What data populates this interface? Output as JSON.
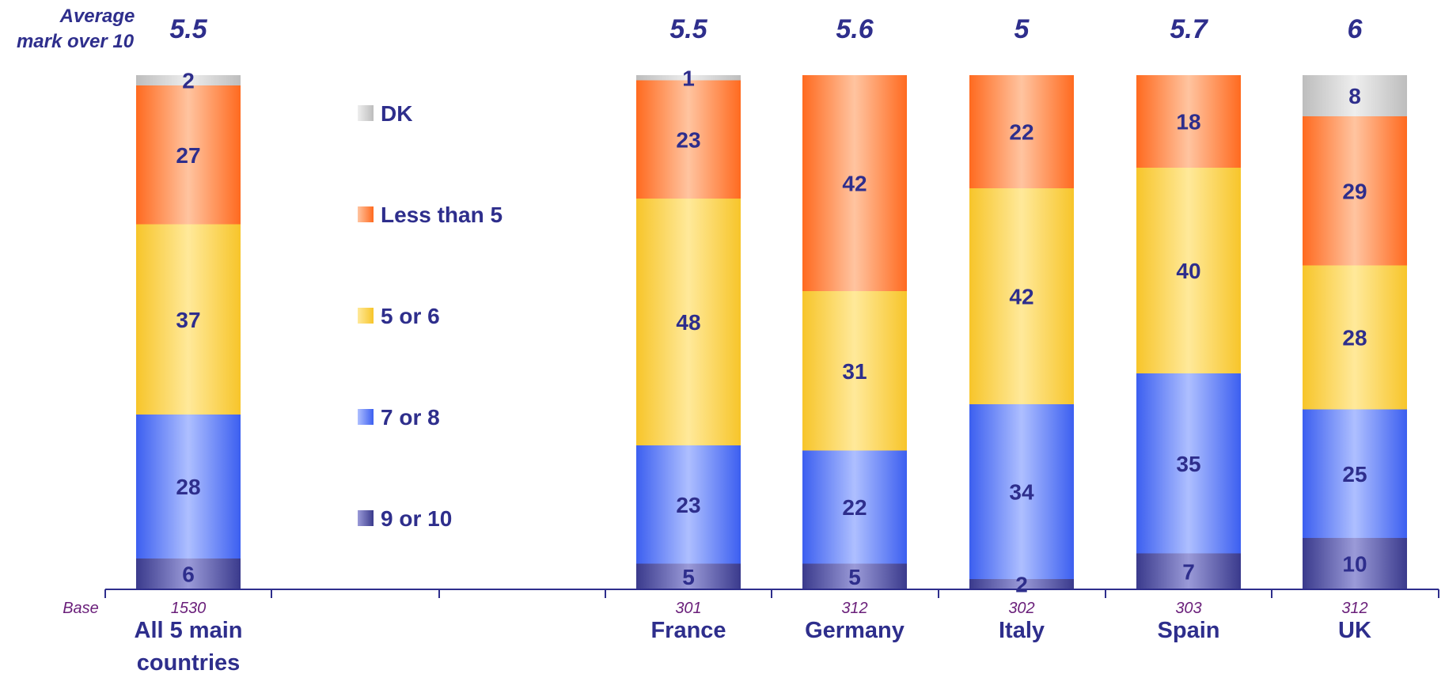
{
  "chart_data": {
    "type": "bar",
    "stacked": true,
    "average_title": [
      "Average",
      "mark over 10"
    ],
    "base_title": "Base",
    "categories": [
      {
        "name": [
          "All 5 main",
          "countries"
        ],
        "base": "1530",
        "average": "5.5"
      },
      {
        "name": [
          "France"
        ],
        "base": "301",
        "average": "5.5"
      },
      {
        "name": [
          "Germany"
        ],
        "base": "312",
        "average": "5.6"
      },
      {
        "name": [
          "Italy"
        ],
        "base": "302",
        "average": "5"
      },
      {
        "name": [
          "Spain"
        ],
        "base": "303",
        "average": "5.7"
      },
      {
        "name": [
          "UK"
        ],
        "base": "312",
        "average": "6"
      }
    ],
    "series": [
      {
        "name": "9 or 10",
        "values": [
          6,
          5,
          5,
          2,
          7,
          10
        ]
      },
      {
        "name": "7 or 8",
        "values": [
          28,
          23,
          22,
          34,
          35,
          25
        ]
      },
      {
        "name": "5 or 6",
        "values": [
          37,
          48,
          31,
          42,
          40,
          28
        ]
      },
      {
        "name": "Less than 5",
        "values": [
          27,
          23,
          42,
          22,
          18,
          29
        ]
      },
      {
        "name": "DK",
        "values": [
          2,
          1,
          0,
          0,
          0,
          8
        ]
      }
    ],
    "ylim": [
      0,
      100
    ],
    "legend_position": "center-left",
    "grid": false,
    "colors": {
      "9 or 10": [
        "#3a3a8c",
        "#9a9ad8"
      ],
      "7 or 8": [
        "#3c5ff0",
        "#aebfff"
      ],
      "5 or 6": [
        "#f7c52a",
        "#ffe99a"
      ],
      "Less than 5": [
        "#ff6a1f",
        "#ffc4a0"
      ],
      "DK": [
        "#bdbdbd",
        "#eeeeee"
      ],
      "text": "#2e2e8c",
      "base_text": "#6a1f7a",
      "axis": "#2e2e8c"
    }
  }
}
